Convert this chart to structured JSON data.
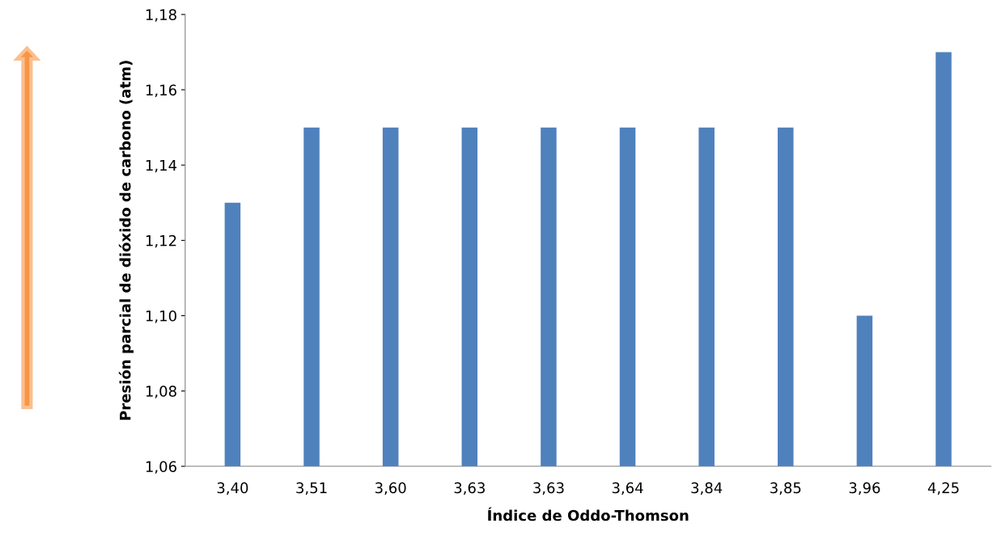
{
  "chart_data": {
    "type": "bar",
    "xlabel": "Índice de Oddo-Thomson",
    "ylabel": "Presión parcial de dióxido de carbono (atm)",
    "categories": [
      "3,40",
      "3,51",
      "3,60",
      "3,63",
      "3,63",
      "3,64",
      "3,84",
      "3,85",
      "3,96",
      "4,25"
    ],
    "values": [
      1.13,
      1.15,
      1.15,
      1.15,
      1.15,
      1.15,
      1.15,
      1.15,
      1.1,
      1.17
    ],
    "color": "#4f81bd",
    "ylim": [
      1.06,
      1.18
    ],
    "yticks": [
      {
        "value": 1.06,
        "label": "1,06"
      },
      {
        "value": 1.08,
        "label": "1,08"
      },
      {
        "value": 1.1,
        "label": "1,10"
      },
      {
        "value": 1.12,
        "label": "1,12"
      },
      {
        "value": 1.14,
        "label": "1,14"
      },
      {
        "value": 1.16,
        "label": "1,16"
      },
      {
        "value": 1.18,
        "label": "1,18"
      }
    ],
    "grid": false
  }
}
